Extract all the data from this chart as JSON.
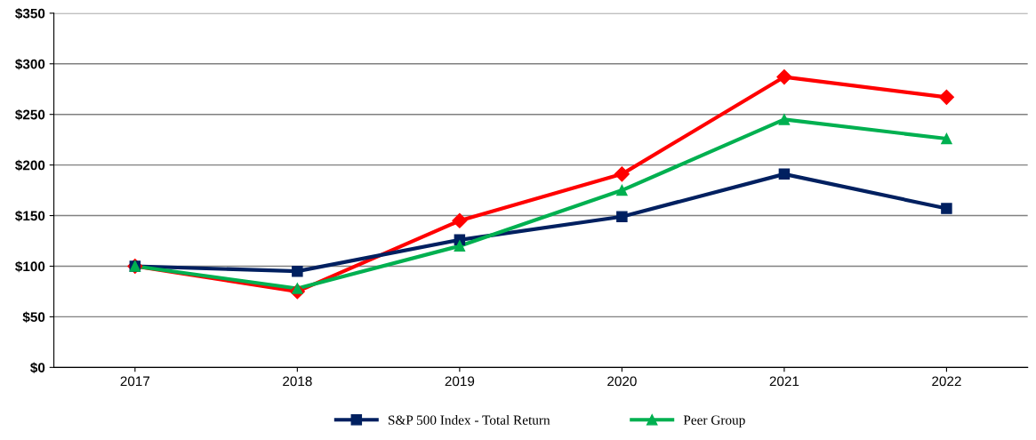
{
  "chart_data": {
    "type": "line",
    "categories": [
      "2017",
      "2018",
      "2019",
      "2020",
      "2021",
      "2022"
    ],
    "series": [
      {
        "color": "#ff0000",
        "marker": "diamond",
        "values": [
          100,
          75,
          145,
          191,
          287,
          267
        ]
      },
      {
        "name": "S&P 500 Index - Total Return",
        "color": "#002060",
        "marker": "square",
        "values": [
          100,
          95,
          126,
          149,
          191,
          157
        ]
      },
      {
        "name": "Peer Group",
        "color": "#00b050",
        "marker": "triangle",
        "values": [
          100,
          78,
          120,
          175,
          245,
          226
        ]
      }
    ],
    "ylim": [
      0,
      350
    ],
    "yticks": [
      {
        "value": 0,
        "label": "$0"
      },
      {
        "value": 50,
        "label": "$50"
      },
      {
        "value": 100,
        "label": "$100"
      },
      {
        "value": 150,
        "label": "$150"
      },
      {
        "value": 200,
        "label": "$200"
      },
      {
        "value": 250,
        "label": "$250"
      },
      {
        "value": 300,
        "label": "$300"
      },
      {
        "value": 350,
        "label": "$350"
      }
    ],
    "grid": "y",
    "legend": "bottom",
    "line_style": "solid"
  }
}
